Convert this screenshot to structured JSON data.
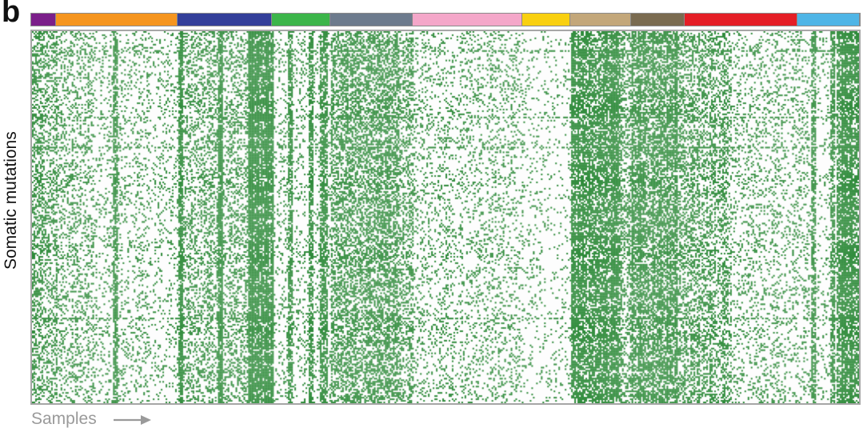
{
  "panel": {
    "letter": "b"
  },
  "axes": {
    "ylabel": "Somatic mutations",
    "xlabel": "Samples"
  },
  "colors": {
    "mutation": "#2e8b3a",
    "background": "#fdfdfd",
    "frame": "#a6a6a6"
  },
  "chart_data": {
    "type": "heatmap",
    "title": "",
    "xlabel": "Samples",
    "ylabel": "Somatic mutations",
    "value_encoding": "binary: green = mutation present, white = absent",
    "sample_groups": [
      {
        "color": "#7b1f8a",
        "fraction": 0.03
      },
      {
        "color": "#f5951f",
        "fraction": 0.147
      },
      {
        "color": "#333f99",
        "fraction": 0.114
      },
      {
        "color": "#3cb54a",
        "fraction": 0.07
      },
      {
        "color": "#6d7b8d",
        "fraction": 0.099
      },
      {
        "color": "#f4a7c9",
        "fraction": 0.133
      },
      {
        "color": "#f9d010",
        "fraction": 0.058
      },
      {
        "color": "#c3a77a",
        "fraction": 0.073
      },
      {
        "color": "#7a6b50",
        "fraction": 0.065
      },
      {
        "color": "#e41e26",
        "fraction": 0.136
      },
      {
        "color": "#4fb5e6",
        "fraction": 0.075
      }
    ],
    "density_profile": [
      {
        "range": [
          0.0,
          0.03
        ],
        "density": 0.55
      },
      {
        "range": [
          0.03,
          0.075
        ],
        "density": 0.3
      },
      {
        "range": [
          0.075,
          0.177
        ],
        "density": 0.18
      },
      {
        "range": [
          0.177,
          0.265
        ],
        "density": 0.4
      },
      {
        "range": [
          0.265,
          0.291
        ],
        "density": 0.97
      },
      {
        "range": [
          0.291,
          0.361
        ],
        "density": 0.18
      },
      {
        "range": [
          0.361,
          0.446
        ],
        "density": 0.62
      },
      {
        "range": [
          0.446,
          0.46
        ],
        "density": 0.45
      },
      {
        "range": [
          0.46,
          0.593
        ],
        "density": 0.22
      },
      {
        "range": [
          0.593,
          0.651
        ],
        "density": 0.1
      },
      {
        "range": [
          0.651,
          0.711
        ],
        "density": 0.88
      },
      {
        "range": [
          0.711,
          0.724
        ],
        "density": 0.55
      },
      {
        "range": [
          0.724,
          0.78
        ],
        "density": 0.85
      },
      {
        "range": [
          0.78,
          0.845
        ],
        "density": 0.5
      },
      {
        "range": [
          0.845,
          0.94
        ],
        "density": 0.22
      },
      {
        "range": [
          0.94,
          0.973
        ],
        "density": 0.12
      },
      {
        "range": [
          0.973,
          1.0
        ],
        "density": 0.96
      }
    ],
    "dense_columns": [
      0.1,
      0.178,
      0.226,
      0.263,
      0.311,
      0.336,
      0.35,
      0.354,
      0.944,
      0.968
    ],
    "dense_rows": [
      0.05,
      0.23,
      0.31,
      0.77
    ]
  }
}
